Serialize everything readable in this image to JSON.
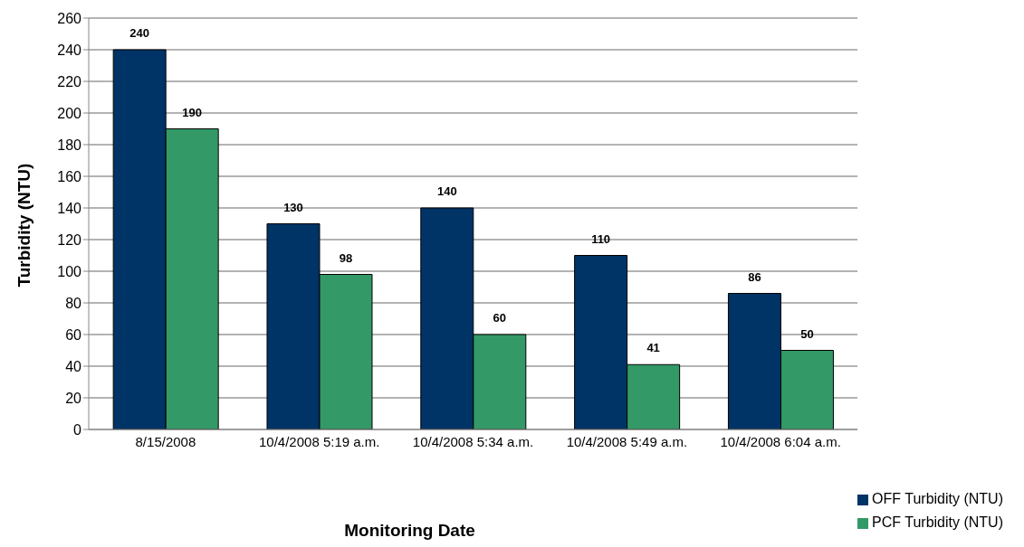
{
  "chart_data": {
    "type": "bar",
    "xlabel": "Monitoring Date",
    "ylabel": "Turbidity (NTU)",
    "categories": [
      "8/15/2008",
      "10/4/2008 5:19 a.m.",
      "10/4/2008 5:34 a.m.",
      "10/4/2008 5:49 a.m.",
      "10/4/2008 6:04 a.m."
    ],
    "series": [
      {
        "name": "OFF Turbidity (NTU)",
        "color": "#003366",
        "values": [
          240,
          130,
          140,
          110,
          86
        ]
      },
      {
        "name": "PCF Turbidity (NTU)",
        "color": "#339966",
        "values": [
          190,
          98,
          60,
          41,
          50
        ]
      }
    ],
    "ylim": [
      0,
      260
    ],
    "yticks": [
      0,
      20,
      40,
      60,
      80,
      100,
      120,
      140,
      160,
      180,
      200,
      220,
      240,
      260
    ],
    "grid": "y",
    "legend": "bottom right",
    "data_labels": true
  }
}
